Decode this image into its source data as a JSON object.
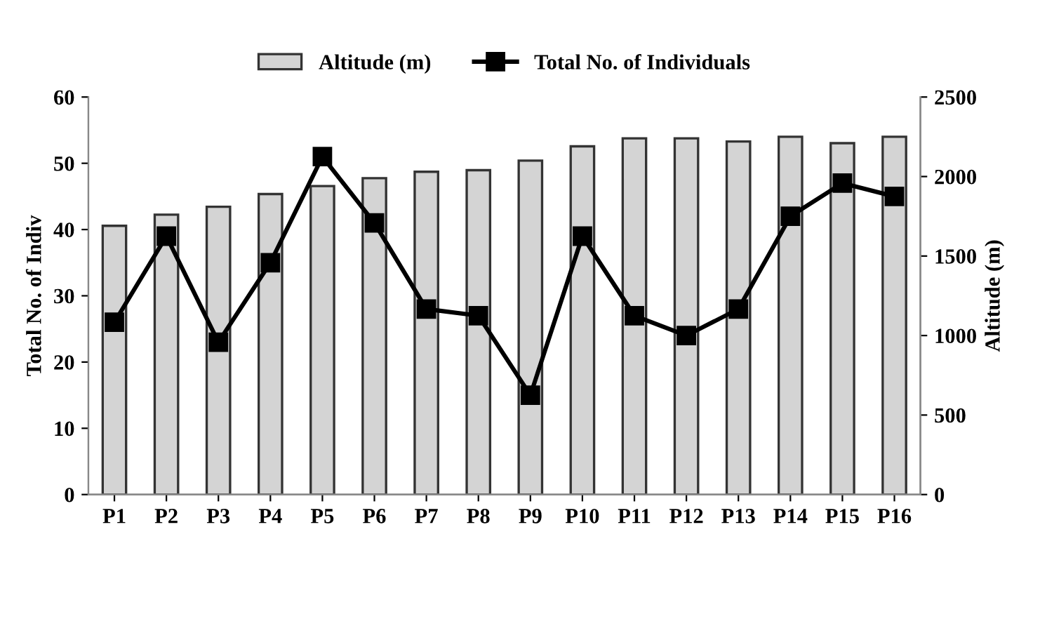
{
  "chart_data": {
    "type": "bar",
    "categories": [
      "P1",
      "P2",
      "P3",
      "P4",
      "P5",
      "P6",
      "P7",
      "P8",
      "P9",
      "P10",
      "P11",
      "P12",
      "P13",
      "P14",
      "P15",
      "P16"
    ],
    "ylabel": "Total No. of Indiv",
    "y2label": "Altitude (m)",
    "ylim": [
      0,
      60
    ],
    "yticks": [
      0,
      10,
      20,
      30,
      40,
      50,
      60
    ],
    "y2lim": [
      0,
      2500
    ],
    "y2ticks": [
      0,
      500,
      1000,
      1500,
      2000,
      2500
    ],
    "grid": false,
    "legend": "top",
    "marker": "square",
    "line_style": "solid",
    "series": [
      {
        "name": "Altitude (m)",
        "axis": "y2",
        "color": "#d4d4d4",
        "values": [
          1690,
          1760,
          1810,
          1890,
          1940,
          1990,
          2030,
          2040,
          2100,
          2190,
          2240,
          2240,
          2220,
          2250,
          2210,
          2250
        ]
      },
      {
        "name": "Total No. of Individuals",
        "type": "line",
        "color": "#000000",
        "values": [
          26,
          39,
          23,
          35,
          51,
          41,
          28,
          27,
          15,
          39,
          27,
          24,
          28,
          42,
          47,
          45
        ]
      }
    ]
  }
}
